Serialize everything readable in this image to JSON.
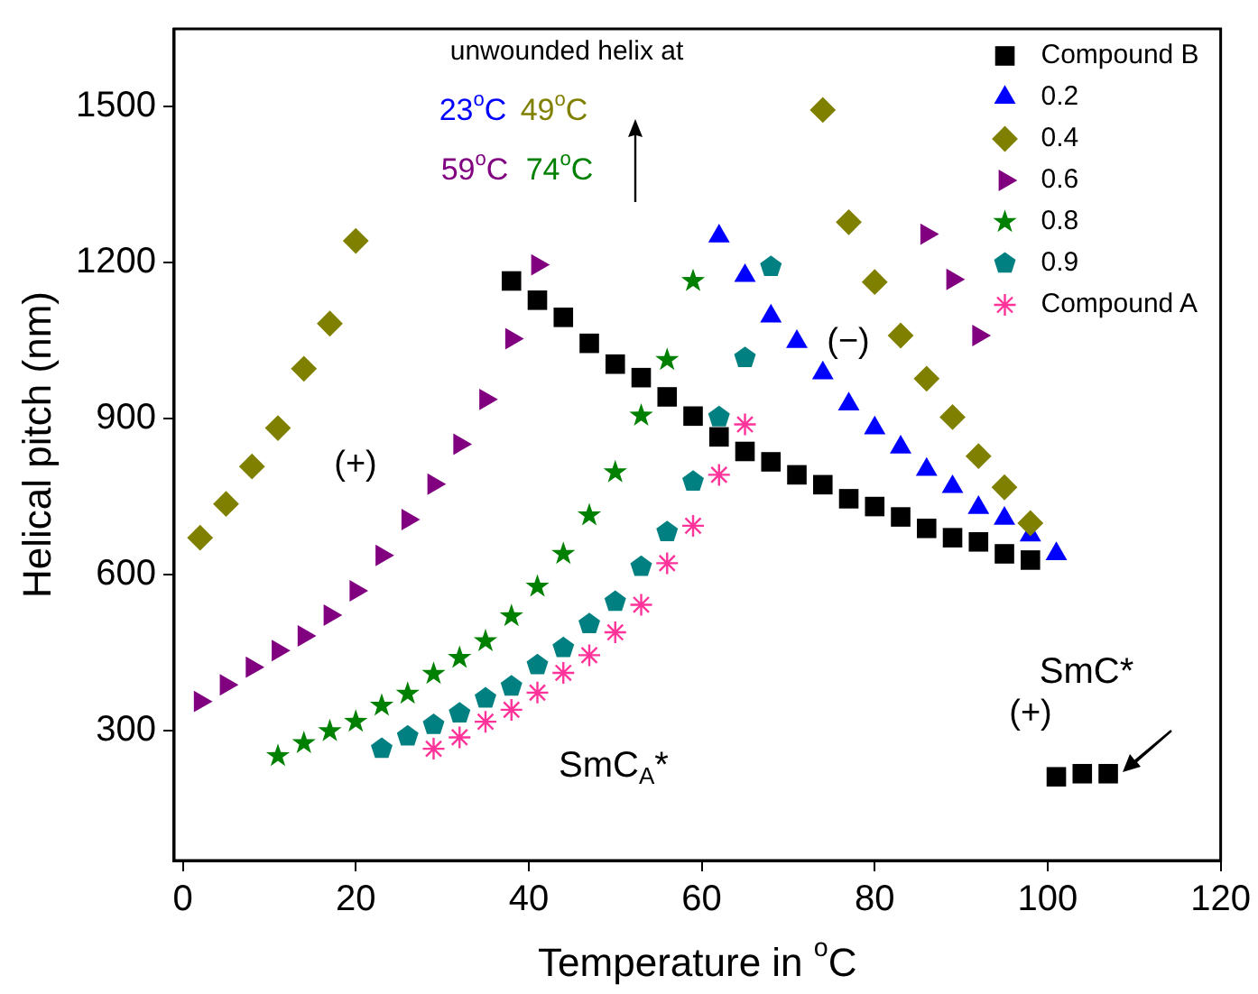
{
  "chart_data": {
    "type": "scatter",
    "xlabel": "Temperature in $^{o}$C",
    "ylabel": "Helical pitch (nm)",
    "xlim": [
      -1,
      120
    ],
    "xticks": [
      0,
      20,
      40,
      60,
      80,
      100,
      120
    ],
    "ylim": [
      50,
      1650
    ],
    "yticks": [
      300,
      600,
      900,
      1200,
      1500
    ],
    "grid": false,
    "legend": "top right",
    "series": [
      {
        "name": "Compound B",
        "color": "#000000",
        "marker": "square",
        "x": [
          38,
          41,
          44,
          47,
          50,
          53,
          56,
          59,
          62,
          65,
          68,
          71,
          74,
          77,
          80,
          83,
          86,
          89,
          92,
          95,
          98,
          101,
          104,
          107
        ],
        "values": [
          1165,
          1128,
          1095,
          1045,
          1005,
          979,
          942,
          905,
          865,
          837,
          817,
          792,
          773,
          746,
          731,
          711,
          689,
          671,
          663,
          640,
          628,
          211,
          217,
          217
        ]
      },
      {
        "name": "0.2",
        "color": "#0000ff",
        "marker": "triangle",
        "x": [
          62,
          65,
          68,
          71,
          74,
          77,
          80,
          83,
          86,
          89,
          92,
          95,
          98,
          101
        ],
        "values": [
          1251,
          1175,
          1097,
          1048,
          988,
          928,
          882,
          845,
          802,
          769,
          729,
          708,
          676,
          640
        ]
      },
      {
        "name": "0.4",
        "color": "#808000",
        "marker": "diamond",
        "x": [
          2,
          5,
          8,
          11,
          14,
          17,
          20,
          74,
          77,
          80,
          83,
          86,
          89,
          92,
          95,
          98
        ],
        "values": [
          671,
          736,
          808,
          882,
          996,
          1083,
          1242,
          1494,
          1278,
          1163,
          1060,
          977,
          903,
          828,
          768,
          699
        ]
      },
      {
        "name": "0.6",
        "color": "#800080",
        "marker": "triangle-right",
        "x": [
          2,
          5,
          8,
          11,
          14,
          17,
          20,
          23,
          26,
          29,
          32,
          35,
          38,
          41,
          86,
          89,
          92
        ],
        "values": [
          356,
          388,
          422,
          454,
          482,
          522,
          569,
          637,
          706,
          774,
          851,
          937,
          1054,
          1196,
          1255,
          1168,
          1060
        ]
      },
      {
        "name": "0.8",
        "color": "#008000",
        "marker": "star",
        "x": [
          11,
          14,
          17,
          20,
          23,
          26,
          29,
          32,
          35,
          38,
          41,
          44,
          47,
          50,
          53,
          56,
          59
        ],
        "values": [
          251,
          276,
          299,
          317,
          348,
          371,
          409,
          440,
          472,
          520,
          577,
          640,
          714,
          797,
          906,
          1013,
          1165
        ]
      },
      {
        "name": "0.9",
        "color": "#008080",
        "x": [
          23,
          26,
          29,
          32,
          35,
          38,
          41,
          44,
          47,
          50,
          53,
          56,
          59,
          62,
          65,
          68
        ],
        "values": [
          265,
          289,
          311,
          333,
          362,
          385,
          426,
          459,
          505,
          548,
          615,
          682,
          779,
          903,
          1017,
          1192
        ]
      },
      {
        "name": "Compound A",
        "color": "#ff3399",
        "marker": "cross",
        "x": [
          29,
          32,
          35,
          38,
          41,
          44,
          47,
          50,
          53,
          56,
          59,
          62,
          65
        ],
        "values": [
          265,
          287,
          317,
          340,
          373,
          411,
          445,
          489,
          542,
          622,
          694,
          792,
          889
        ]
      }
    ],
    "annotations": [
      "unwounded helix at",
      "23$^{o}$C",
      "49$^{o}$C",
      "59$^{o}$C",
      "74$^{o}$C",
      "(+)",
      "(−)",
      "SmC$_{A}$*",
      "(+)",
      "SmC*"
    ]
  }
}
